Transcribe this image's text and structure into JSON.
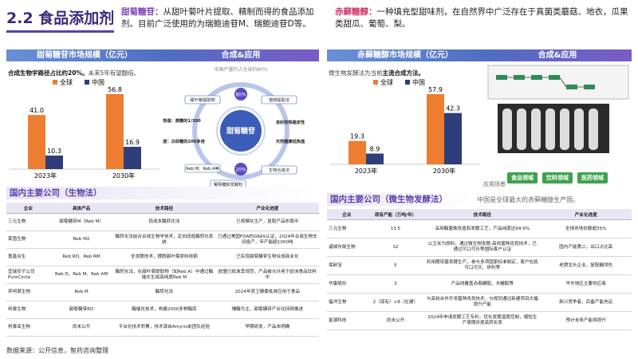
{
  "header": {
    "title": "2.2 食品添加剂"
  },
  "intro": [
    {
      "term": "甜菊糖苷：",
      "text": "从甜叶菊叶片提取、精制而得的食品添加剂。目前广泛使用的为瑞鲍迪苷M、瑞鲍迪苷D等。"
    },
    {
      "term": "赤藓糖醇：",
      "text": "一种填充型甜味剂，在自然界中广泛存在于真菌类蘑菇、地衣，瓜果类甜瓜、葡萄、梨。"
    }
  ],
  "panels": [
    {
      "market_banner": "甜菊糖苷市场规模（亿元）",
      "app_banner": "合成&应用",
      "note": [
        {
          "text": "合成生物学路径占比约20%。",
          "bold": true
        },
        {
          "text": "未来5年有望翻倍。",
          "bold": false
        }
      ]
    },
    {
      "market_banner": "赤藓糖醇市场规模（亿元）",
      "app_banner": "合成&应用",
      "note": [
        {
          "text": "微生物发酵法为当前",
          "bold": false
        },
        {
          "text": "主流合成方法。",
          "bold": true
        }
      ]
    }
  ],
  "chart_data": [
    {
      "type": "bar",
      "categories": [
        "2023年",
        "2030年"
      ],
      "series": [
        {
          "name": "全球",
          "color": "#ed7d31",
          "values": [
            41.0,
            56.8
          ],
          "value_labels": [
            "41.0",
            "56.8"
          ]
        },
        {
          "name": "中国",
          "color": "#2f3e7a",
          "values": [
            10.3,
            16.9
          ]
        }
      ]
    },
    {
      "type": "bar",
      "categories": [
        "2023年",
        "2030年"
      ],
      "series": [
        {
          "name": "全球",
          "color": "#ed7d31",
          "values": [
            19.3,
            57.9
          ]
        },
        {
          "name": "中国",
          "color": "#2f3e7a",
          "values": [
            8.9,
            42.3
          ]
        }
      ]
    }
  ],
  "diagram": {
    "caption": "中国产量约占全球的80%",
    "center": "甜菊糖苷",
    "share_top": "80%",
    "share_bottom": "20%",
    "nodes": [
      "甜叶菊提取物",
      "植物提取法",
      "良好的热稳定性",
      "天然健康低热值",
      "生物合成法",
      "葡萄糖和发酵粉",
      "Reb M、Reb A等",
      "甜度：白砂糖的200多倍",
      "热值：蔗糖的1/300"
    ]
  },
  "process_image": {
    "labels": [
      "食品领域",
      "饮料领域",
      "医药领域"
    ],
    "scene": "应用场景"
  },
  "tables": [
    {
      "title": "国内主要公司（生物法）",
      "columns": [
        "企业",
        "具体产品",
        "技术路径",
        "产业化进度"
      ],
      "rows": [
        [
          "三元生物",
          "甜菊糖苷M（Reb M）",
          "低成本酶转化法",
          "已规模化生产，复配产品布局中"
        ],
        [
          "莱茵生物",
          "Reb M2",
          "酶转化法结合合成生物学技术，定向改造酶转化系统",
          "已通过美国FDA的GRAS认证，2024年合成生物车间投产，年产能超1000吨"
        ],
        [
          "盈鑫合生",
          "Reb RD、Reb RM",
          "全发酵技术，摆脱甜叶菊原料依赖",
          "已实现甜菊糖苷生物合成商业化"
        ],
        [
          "宜瑞安子公司PureCircle",
          "Reb D、Reb M、Reb AM",
          "酶转化法，在甜叶菊提取物（如Reb A）中通过酶催化生成高纯度Reb M",
          "欧盟已批准其规范，产品被允许用于欧洲食品饮料中"
        ],
        [
          "弈柯莱生物",
          "Reb M",
          "酶转化法",
          "2024年获卫健委批准应用于食品"
        ],
        [
          "邦泰生物",
          "甜菊糖苷RD",
          "酶催化技术，构建2000多种酶库",
          "辅酶为主，甜菊糖苷产业化持续推进"
        ],
        [
          "柯泰亚生物",
          "尚未公开",
          "平台化技术积累，技术源自Amyris前团队经验",
          "早期研发，产品未明确"
        ]
      ]
    },
    {
      "title": "国内主要公司（微生物发酵法）",
      "subtitle": "中国是全球最大的赤藓糖醇生产国。",
      "columns": [
        "企业",
        "现有产能（万吨/年）",
        "技术路径",
        "产业化进度"
      ],
      "rows": [
        [
          "三元生物",
          "13.5",
          "采用酶菌株改造和发酵工艺，产品纯度达99.9%",
          "全球市场份额超35%"
        ],
        [
          "诸城东晓生物",
          "12",
          "以玉米为原料，通过微生物发酵-高效菌种培育技术，已通过可口可乐等国际客户认证",
          "国内产能第二，出口占比高"
        ],
        [
          "保龄宝",
          "5",
          "利用酵母菌发酵生产，参与多项国家标准制定，客户包括可口可乐、伊利等",
          "老牌龙头企业，复配糖领先"
        ],
        [
          "华康股份",
          "3",
          "产品线覆盖赤藓糖醇、木糖醇等",
          "华东地区主要供应商"
        ],
        [
          "福洋生物",
          "2（现有）+8（在建）",
          "与高校合作开发菌种改良技术，与规划通过新建项目大幅提升产能",
          "新兴竞争者，后备产能充足"
        ],
        [
          "星湖科技",
          "尚未公开",
          "2024年申请发酵工艺专利，优化发酵温度控制，缩短生产周期并提高转化率",
          "预计未来产能将提升"
        ]
      ]
    }
  ],
  "footer": "数据来源：公开信息，智药咨询整理"
}
